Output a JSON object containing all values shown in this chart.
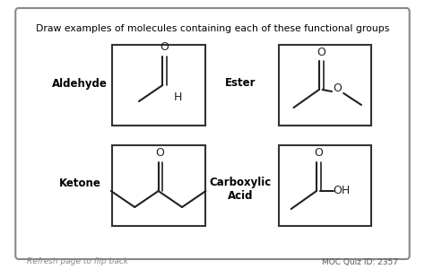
{
  "title": "Draw examples of molecules containing each of these functional groups",
  "background_color": "#ffffff",
  "border_color": "#333333",
  "text_color": "#000000",
  "footer_left": "Refresh page to flip back",
  "footer_right": "MOC Quiz ID: 2357",
  "labels": {
    "aldehyde": "Aldehyde",
    "ester": "Ester",
    "ketone": "Ketone",
    "carboxylic": "Carboxylic\nAcid"
  }
}
